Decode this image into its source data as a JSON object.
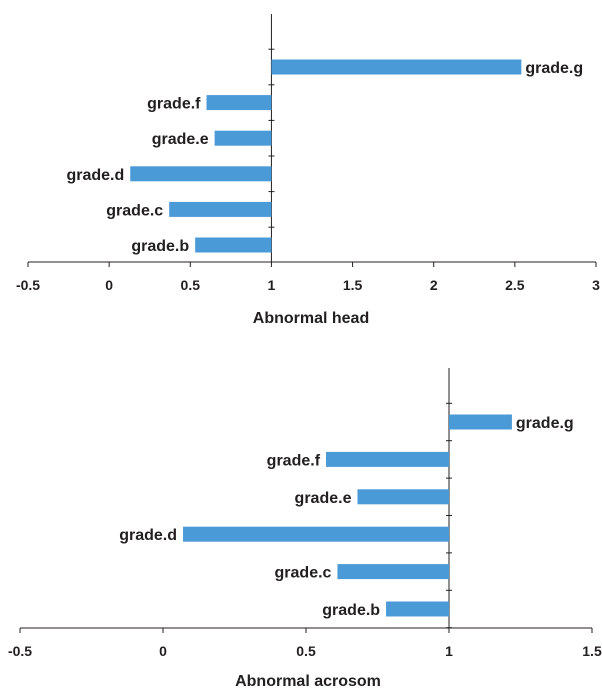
{
  "chart_data": [
    {
      "type": "bar",
      "orientation": "horizontal",
      "xlabel": "Abnormal head",
      "xlim": [
        -0.5,
        3
      ],
      "xticks": [
        "-0.5",
        "0",
        "0.5",
        "1",
        "1.5",
        "2",
        "2.5",
        "3"
      ],
      "baseline": 1,
      "categories": [
        "grade.b",
        "grade.c",
        "grade.d",
        "grade.e",
        "grade.f",
        "grade.g"
      ],
      "values": [
        0.53,
        0.37,
        0.13,
        0.65,
        0.6,
        2.54
      ],
      "color": "#4a9ad7",
      "grid": false,
      "legend": "none"
    },
    {
      "type": "bar",
      "orientation": "horizontal",
      "xlabel": "Abnormal acrosom",
      "xlim": [
        -0.5,
        1.5
      ],
      "xticks": [
        "-0.5",
        "0",
        "0.5",
        "1",
        "1.5"
      ],
      "baseline": 1,
      "categories": [
        "grade.b",
        "grade.c",
        "grade.d",
        "grade.e",
        "grade.f",
        "grade.g"
      ],
      "values": [
        0.78,
        0.61,
        0.07,
        0.68,
        0.57,
        1.22
      ],
      "color": "#4a9ad7",
      "grid": false,
      "legend": "none"
    }
  ]
}
